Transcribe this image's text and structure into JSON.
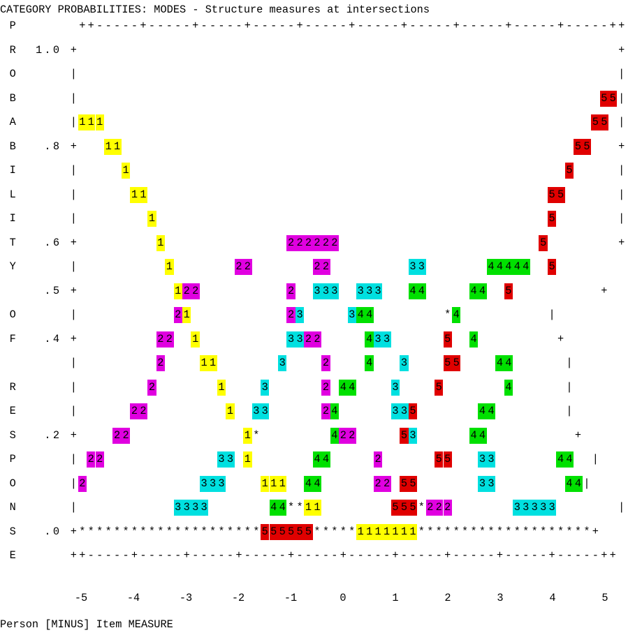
{
  "chart_data": {
    "type": "line",
    "title": "CATEGORY PROBABILITIES: MODES - Structure measures at intersections",
    "ylabel": "PROBABILITY OF RESPONSE",
    "xlabel": "Person [MINUS] Item MEASURE",
    "xlim": [
      -5,
      5
    ],
    "ylim": [
      0,
      1
    ],
    "x_ticks": [
      "-5",
      "-4",
      "-3",
      "-2",
      "-1",
      "0",
      "1",
      "2",
      "3",
      "4",
      "5"
    ],
    "y_ticks": [
      "1.0",
      ".8",
      ".6",
      ".5",
      ".4",
      ".2",
      ".0"
    ],
    "series": [
      {
        "name": "1",
        "color": "#ffff00",
        "x": [
          -5,
          -4.5,
          -4,
          -3.5,
          -3,
          -2.5,
          -2,
          -1.5,
          -1,
          0,
          1
        ],
        "y": [
          0.87,
          0.8,
          0.72,
          0.61,
          0.5,
          0.38,
          0.25,
          0.16,
          0.09,
          0.03,
          0.0
        ]
      },
      {
        "name": "2",
        "color": "#e000e0",
        "x": [
          -5,
          -4.5,
          -4,
          -3.5,
          -3,
          -2.5,
          -2,
          -1.5,
          -1,
          -0.5,
          0,
          0.5,
          1,
          1.5,
          2
        ],
        "y": [
          0.12,
          0.18,
          0.24,
          0.31,
          0.4,
          0.53,
          0.58,
          0.58,
          0.52,
          0.4,
          0.24,
          0.14,
          0.08,
          0.02,
          0.0
        ]
      },
      {
        "name": "3",
        "color": "#00e0e0",
        "x": [
          -3,
          -2.5,
          -2,
          -1.5,
          -1,
          -0.5,
          0,
          0.5,
          1,
          1.5,
          2,
          2.5,
          3,
          3.5
        ],
        "y": [
          0.04,
          0.09,
          0.16,
          0.24,
          0.34,
          0.44,
          0.52,
          0.5,
          0.44,
          0.34,
          0.22,
          0.14,
          0.08,
          0.04
        ]
      },
      {
        "name": "4",
        "color": "#00e000",
        "x": [
          -1.5,
          -1,
          -0.5,
          0,
          0.5,
          1,
          1.5,
          2,
          2.5,
          3,
          3.5,
          4,
          4.5,
          5
        ],
        "y": [
          0.03,
          0.08,
          0.13,
          0.22,
          0.28,
          0.38,
          0.47,
          0.55,
          0.55,
          0.42,
          0.36,
          0.25,
          0.16,
          0.12
        ]
      },
      {
        "name": "5",
        "color": "#e00000",
        "x": [
          0,
          0.5,
          1,
          1.5,
          2,
          2.5,
          3,
          3.5,
          4,
          4.5,
          5
        ],
        "y": [
          0.0,
          0.03,
          0.1,
          0.18,
          0.3,
          0.42,
          0.53,
          0.65,
          0.79,
          0.87,
          0.93
        ]
      }
    ],
    "grid": false
  },
  "rows": [
    "P       ++-----+-----+-----+-----+-----+-----+-----+-----+-----+-----++",
    "R  1.0 +                                                              +",
    "O      |                                                              |",
    "B      |                                                            55|",
    "A      |111                                                        55 |",
    "B   .8 +   11                                                    55   +",
    "I      |     1                                                  5     |",
    "L      |      11                                              55      |",
    "I      |        1                                             5       |",
    "T   .6 +         1              222222                       5        +",
    "Y      |          1       22       22         33       44444  5         |",
    "    .5 +           122          2  333  333   44     44  5          +",
    "O      |           21           23     344        *4          |",
    "F   .4 +         22  1          3322     433      5  4         +",
    "       |         2    11       3    2    4   3    55    44      |",
    "R      |        2       1    3      2 44    3    5       4      |",
    "E      |      22         1  33      24      335       44        |",
    "S   .2 +    22             1*        422     53      44          +",
    "P      | 22             33 1       44     2      55   33       44  |",
    "O      |2             333    111  44      22 55       33        44|",
    "N      |           3333       44**11        555*222       33333       |",
    "S   .0 +*********************555555*****1111111********************+",
    "E      ++-----+-----+-----+-----+-----+-----+-----+-----+-----+-----++"
  ],
  "cell_colors": {
    "1": "#ffff00",
    "2": "#e000e0",
    "3": "#00e0e0",
    "4": "#00e000",
    "5": "#e00000"
  }
}
